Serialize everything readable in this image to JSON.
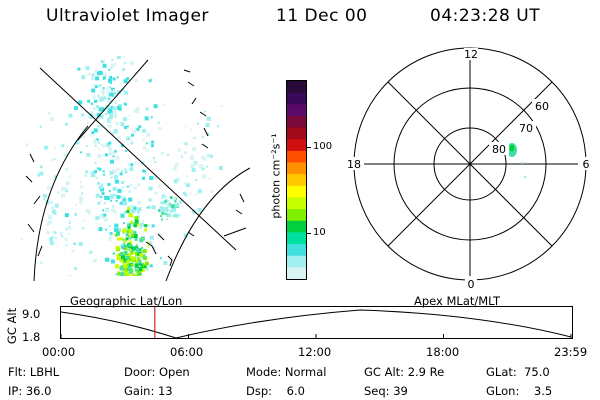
{
  "header": {
    "instrument": "Ultraviolet Imager",
    "date": "11 Dec 00",
    "time": "04:23:28 UT"
  },
  "colorbar": {
    "unit_label": "photon cm⁻²s⁻¹",
    "ticks": [
      "100",
      "10"
    ],
    "colors": [
      "#2a0a3a",
      "#3a0a5a",
      "#5a0a6a",
      "#7a0a3a",
      "#a00a1a",
      "#d01010",
      "#ff5000",
      "#ff9000",
      "#ffc800",
      "#ffff00",
      "#c8ff00",
      "#80f000",
      "#00d040",
      "#00e0a0",
      "#40e0e0",
      "#a0f0f0",
      "#d8f4f4"
    ]
  },
  "polar": {
    "lat_labels": [
      "80",
      "70",
      "60"
    ],
    "mlt_labels": {
      "top": "12",
      "right": "6",
      "bottom": "0",
      "left": "18"
    }
  },
  "altitude_panel": {
    "y_label": "GC Alt",
    "y_ticks": [
      "9.0",
      "1.8"
    ],
    "left_caption": "Geographic Lat/Lon",
    "right_caption": "Apex MLat/MLT",
    "x_ticks": [
      "00:00",
      "06:00",
      "12:00",
      "18:00",
      "23:59"
    ],
    "current_time_fraction": 0.184
  },
  "footer": [
    [
      "Flt: LBHL",
      "Door: Open",
      "Mode: Normal",
      "GC Alt: 2.9 Re",
      "GLat:  75.0"
    ],
    [
      "IP: 36.0",
      "Gain: 13",
      "Dsp:    6.0",
      "Seq: 39",
      "GLon:    3.5"
    ]
  ]
}
